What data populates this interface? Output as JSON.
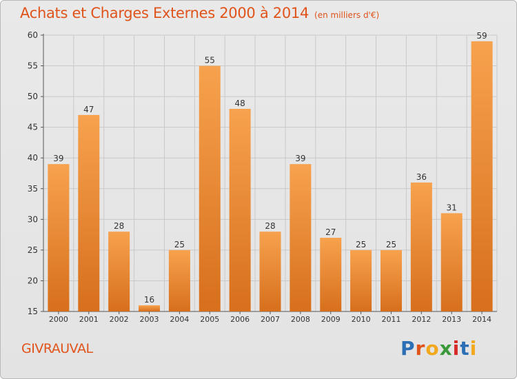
{
  "header": {
    "title": "Achats et Charges Externes 2000 à 2014",
    "subtitle": "(en milliers d'€)"
  },
  "footer": {
    "place": "GIVRAUVAL",
    "brand": "Proxiti",
    "brand_colors": [
      "#2d6fb6",
      "#e0531a",
      "#f1a81c",
      "#3a9a3a",
      "#d62a2a",
      "#2d6fb6",
      "#f1a81c"
    ]
  },
  "colors": {
    "accent": "#e0531a",
    "bar_top": "#f7a24e",
    "bar_bottom": "#d76f1c",
    "grid": "#c9c9c9"
  },
  "chart_data": {
    "type": "bar",
    "categories": [
      "2000",
      "2001",
      "2002",
      "2003",
      "2004",
      "2005",
      "2006",
      "2007",
      "2008",
      "2009",
      "2010",
      "2011",
      "2012",
      "2013",
      "2014"
    ],
    "values": [
      39,
      47,
      28,
      16,
      25,
      55,
      48,
      28,
      39,
      27,
      25,
      25,
      36,
      31,
      59
    ],
    "ylim": [
      15,
      60
    ],
    "yticks": [
      15,
      20,
      25,
      30,
      35,
      40,
      45,
      50,
      55,
      60
    ],
    "grid": true
  }
}
